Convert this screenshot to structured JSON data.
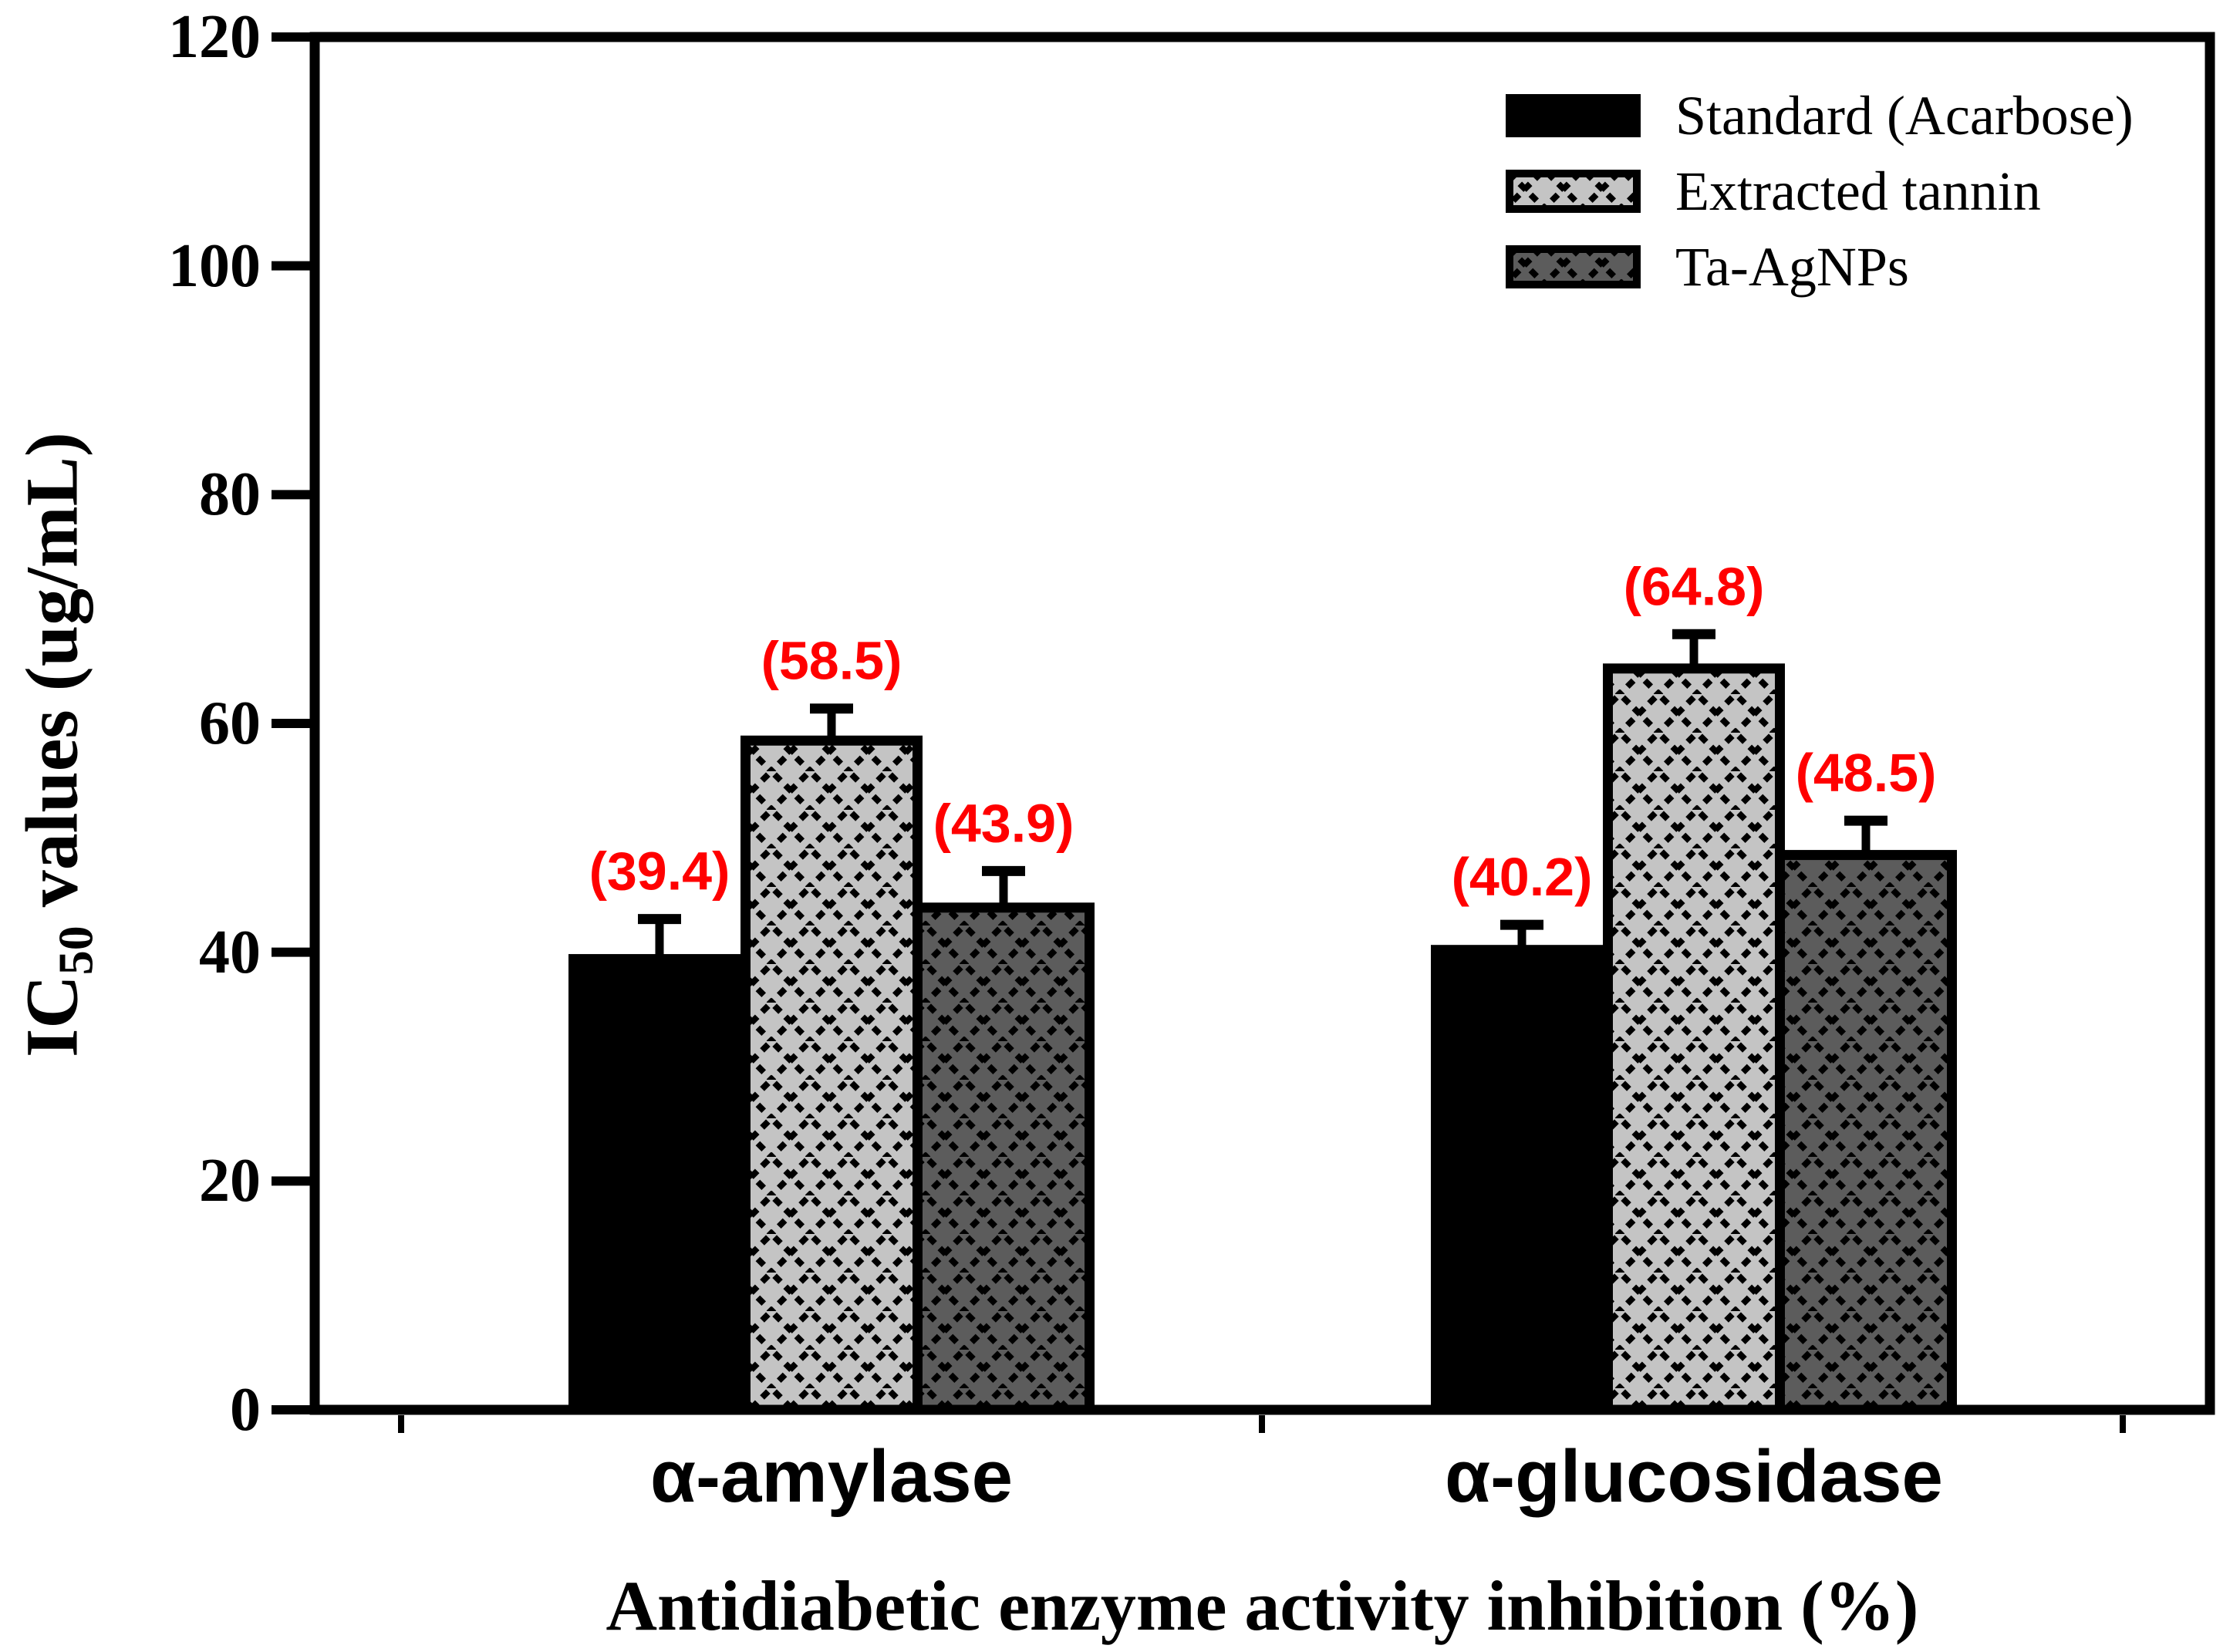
{
  "chart_data": {
    "type": "bar",
    "title": "",
    "categories": [
      "α-amylase",
      "α-glucosidase"
    ],
    "series": [
      {
        "name": "Standard (Acarbose)",
        "values": [
          39.4,
          40.2
        ],
        "errors_up": [
          3.5,
          2.2
        ],
        "fill": "#000000",
        "pattern": "solid"
      },
      {
        "name": "Extracted tannin",
        "values": [
          58.5,
          64.8
        ],
        "errors_up": [
          2.8,
          3.0
        ],
        "fill": "#c4c4c4",
        "pattern": "crosshatch"
      },
      {
        "name": "Ta-AgNPs",
        "values": [
          43.9,
          48.5
        ],
        "errors_up": [
          3.2,
          3.0
        ],
        "fill": "#5c5c5c",
        "pattern": "crosshatch"
      }
    ],
    "data_labels": [
      [
        "(39.4)",
        "(58.5)",
        "(43.9)"
      ],
      [
        "(40.2)",
        "(64.8)",
        "(48.5)"
      ]
    ],
    "data_label_color": "#ff0000",
    "xlabel": "Antidiabetic enzyme activity inhibition (%)",
    "ylabel": {
      "prefix": "IC",
      "sub": "50",
      "rest": " values (ug/mL)"
    },
    "ylim": [
      0,
      120
    ],
    "yticks": [
      "0",
      "20",
      "40",
      "60",
      "80",
      "100",
      "120"
    ],
    "legend": {
      "position": "top-right"
    },
    "grid": false,
    "frame": true,
    "axis_color": "#000000",
    "pattern_line_color": "#000000"
  }
}
